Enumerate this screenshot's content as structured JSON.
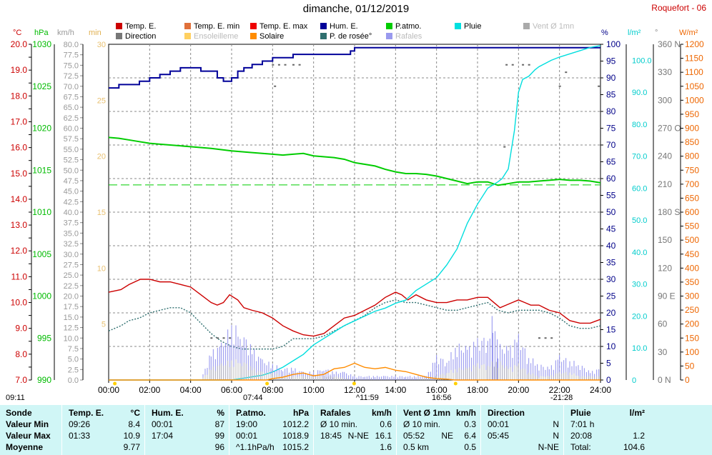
{
  "header": {
    "title": "dimanche, 01/12/2019",
    "station": "Roquefort - 06"
  },
  "legend": [
    {
      "label": "Temp. E.",
      "color": "#cc0000",
      "muted": false
    },
    {
      "label": "Temp. E. min",
      "color": "#e0703a",
      "muted": false
    },
    {
      "label": "Temp. E. max",
      "color": "#ee0000",
      "muted": false
    },
    {
      "label": "Hum. E.",
      "color": "#000099",
      "muted": false
    },
    {
      "label": "P.atmo.",
      "color": "#00cc00",
      "muted": false
    },
    {
      "label": "Pluie",
      "color": "#00e0e0",
      "muted": false
    },
    {
      "label": "Vent Ø 1mn",
      "color": "#aaaaaa",
      "muted": true
    },
    {
      "label": "Direction",
      "color": "#777777",
      "muted": false
    },
    {
      "label": "Ensoleilleme",
      "color": "#ffd060",
      "muted": true
    },
    {
      "label": "Solaire",
      "color": "#ff8c00",
      "muted": false
    },
    {
      "label": "P. de rosée°",
      "color": "#2f6f6f",
      "muted": false
    },
    {
      "label": "Rafales",
      "color": "#9999ee",
      "muted": true
    }
  ],
  "units": {
    "temp": "°C",
    "press": "hPa",
    "wind": "km/h",
    "sun": "min",
    "hum": "%",
    "rain": "l/m²",
    "dir": "°",
    "solar": "W/m²"
  },
  "footer": {
    "sunrise": "07:44",
    "sunset": "16:56",
    "noon": "^11:59",
    "moonset": "09:11",
    "moonrise": "-21:28"
  },
  "chart_data": {
    "type": "line",
    "x_unit": "time of day",
    "x_ticks": [
      "00:00",
      "02:00",
      "04:00",
      "06:00",
      "08:00",
      "10:00",
      "12:00",
      "14:00",
      "16:00",
      "18:00",
      "20:00",
      "22:00",
      "24:00"
    ],
    "axes": {
      "temp": {
        "min": 7.0,
        "max": 20.0,
        "step": 0.5,
        "labels": [
          "7.0",
          "8.0",
          "9.0",
          "10.0",
          "11.0",
          "12.0",
          "13.0",
          "14.0",
          "15.0",
          "16.0",
          "17.0",
          "18.0",
          "19.0",
          "20.0"
        ]
      },
      "press": {
        "min": 990,
        "max": 1030,
        "labels": [
          "990",
          "995",
          "1000",
          "1005",
          "1010",
          "1015",
          "1020",
          "1025",
          "1030"
        ]
      },
      "wind": {
        "min": 0.0,
        "max": 80.0,
        "step": 2.5
      },
      "sun": {
        "min": 0,
        "max": 30,
        "labels": [
          "5",
          "10",
          "15",
          "20",
          "25",
          "30"
        ]
      },
      "hum": {
        "min": 0,
        "max": 100,
        "step": 5
      },
      "rain": {
        "min": 0.0,
        "max": 105.0,
        "labels": [
          "0",
          "10.0",
          "20.0",
          "30.0",
          "40.0",
          "50.0",
          "60.0",
          "70.0",
          "80.0",
          "90.0",
          "100.0"
        ]
      },
      "dir": {
        "min": 0,
        "max": 360,
        "labels": [
          "0 N",
          "30",
          "60",
          "90 E",
          "120",
          "150",
          "180 S",
          "210",
          "240",
          "270 O",
          "300",
          "330",
          "360 N"
        ]
      },
      "solar": {
        "min": 0,
        "max": 1200,
        "step": 50
      }
    },
    "series": [
      {
        "name": "Temp. E.",
        "axis": "temp",
        "color": "#cc0000",
        "x": [
          0,
          0.6,
          1,
          1.55,
          2,
          2.5,
          3,
          3.5,
          4,
          4.5,
          5,
          5.3,
          5.6,
          5.9,
          6.3,
          6.6,
          7,
          7.5,
          8,
          8.5,
          9,
          9.5,
          10,
          10.5,
          11,
          11.5,
          12,
          12.5,
          13,
          13.5,
          14,
          14.3,
          14.6,
          15,
          15.5,
          16,
          16.5,
          17,
          17.5,
          18,
          18.5,
          18.8,
          19.1,
          19.4,
          19.7,
          20,
          20.3,
          20.6,
          21,
          21.5,
          22,
          22.5,
          23,
          23.5,
          24
        ],
        "y": [
          10.4,
          10.5,
          10.7,
          10.9,
          10.9,
          10.8,
          10.8,
          10.7,
          10.6,
          10.3,
          10.0,
          9.9,
          10.0,
          10.3,
          10.1,
          9.8,
          9.7,
          9.6,
          9.4,
          9.1,
          8.9,
          8.75,
          8.7,
          8.8,
          9.1,
          9.4,
          9.5,
          9.7,
          9.9,
          10.2,
          10.4,
          10.3,
          10.1,
          10.3,
          10.1,
          10.0,
          10.0,
          10.1,
          10.1,
          10.2,
          10.2,
          10.0,
          9.8,
          9.9,
          10.0,
          10.1,
          10.0,
          9.9,
          9.9,
          9.7,
          9.6,
          9.3,
          9.2,
          9.2,
          9.35
        ]
      },
      {
        "name": "P. de rosée°",
        "axis": "temp",
        "color": "#2f6f6f",
        "dashed": true,
        "x": [
          0,
          0.6,
          1,
          1.5,
          2,
          2.5,
          3,
          3.5,
          4,
          4.5,
          5,
          5.5,
          6,
          6.5,
          7,
          7.5,
          8,
          8.5,
          9,
          9.5,
          10,
          10.5,
          11,
          11.5,
          12,
          12.5,
          13,
          13.5,
          14,
          14.5,
          15,
          15.5,
          16,
          16.5,
          17,
          17.5,
          18,
          18.5,
          19,
          19.5,
          20,
          20.5,
          21,
          21.5,
          22,
          22.5,
          23,
          23.5,
          24
        ],
        "y": [
          8.9,
          9.1,
          9.3,
          9.4,
          9.6,
          9.7,
          9.8,
          9.8,
          9.6,
          9.2,
          8.8,
          8.5,
          8.3,
          8.2,
          8.2,
          8.2,
          8.2,
          8.3,
          8.6,
          8.6,
          8.6,
          8.7,
          8.9,
          9.1,
          9.3,
          9.5,
          9.8,
          10.0,
          10.1,
          10.0,
          10.0,
          9.9,
          9.8,
          9.7,
          9.7,
          9.8,
          9.9,
          10.0,
          9.7,
          9.6,
          9.7,
          9.7,
          9.7,
          9.6,
          9.4,
          9.1,
          9.0,
          9.0,
          9.1
        ]
      },
      {
        "name": "P.atmo.",
        "axis": "press",
        "color": "#00cc00",
        "x": [
          0,
          0.5,
          1,
          1.5,
          2,
          2.5,
          3,
          3.5,
          4,
          5,
          6,
          7,
          8,
          8.5,
          9,
          9.5,
          10,
          11,
          11.5,
          12,
          12.5,
          13,
          13.5,
          14,
          14.5,
          15,
          15.5,
          16,
          16.5,
          17,
          17.5,
          18,
          18.5,
          19,
          19.5,
          20,
          20.5,
          21,
          21.5,
          22,
          22.5,
          23,
          23.5,
          24
        ],
        "y": [
          1018.9,
          1018.8,
          1018.6,
          1018.4,
          1018.2,
          1018.1,
          1018.0,
          1017.9,
          1017.8,
          1017.6,
          1017.3,
          1017.1,
          1016.9,
          1016.8,
          1016.9,
          1017.0,
          1016.7,
          1016.5,
          1016.3,
          1015.9,
          1015.7,
          1015.5,
          1015.1,
          1014.8,
          1014.6,
          1014.6,
          1014.5,
          1014.3,
          1014.0,
          1013.7,
          1013.4,
          1013.6,
          1013.6,
          1013.2,
          1013.4,
          1013.6,
          1013.6,
          1013.7,
          1013.8,
          1013.9,
          1013.8,
          1013.8,
          1013.7,
          1013.5
        ]
      },
      {
        "name": "Hum. E.",
        "axis": "hum",
        "color": "#000099",
        "step": true,
        "x": [
          0,
          0.5,
          1,
          1.5,
          2,
          2.5,
          3,
          3.5,
          4,
          4.5,
          5,
          5.3,
          5.6,
          6,
          6.3,
          6.6,
          7,
          7.5,
          8,
          8.5,
          9,
          9.5,
          10,
          10.5,
          11,
          11.5,
          11.8,
          12,
          12.5,
          13,
          13.5,
          14,
          15,
          16,
          16.5,
          17,
          17.5,
          18,
          18.5,
          19,
          19.3,
          19.6,
          20,
          20.5,
          21,
          22,
          23,
          24
        ],
        "y": [
          87,
          88,
          88,
          89,
          90,
          91,
          92,
          93,
          93,
          92,
          92,
          90,
          89,
          90,
          92,
          93,
          94,
          95,
          96,
          96,
          97,
          97,
          97,
          97,
          97,
          97,
          98,
          99,
          99,
          99,
          99,
          99,
          99,
          99,
          99,
          99,
          99,
          99,
          99,
          99,
          99,
          99,
          99,
          99,
          99,
          99,
          99,
          99
        ]
      },
      {
        "name": "Pluie",
        "axis": "rain",
        "color": "#00dede",
        "x": [
          0,
          6,
          6.5,
          7,
          7.5,
          8,
          8.5,
          9,
          9.5,
          10,
          10.5,
          11,
          11.5,
          12,
          12.5,
          13,
          13.5,
          14,
          14.5,
          15,
          15.5,
          16,
          16.5,
          17,
          17.5,
          18,
          18.5,
          19,
          19.2,
          19.5,
          19.8,
          20,
          20.2,
          20.5,
          20.8,
          21,
          21.3,
          21.6,
          22,
          22.5,
          23,
          23.5,
          24
        ],
        "y": [
          0,
          0,
          0.5,
          1,
          1.5,
          2.5,
          4,
          6,
          8,
          11,
          13,
          15,
          17,
          18.5,
          20,
          21.5,
          22.5,
          24,
          25,
          28,
          30,
          32,
          36,
          41,
          49,
          55,
          60,
          62,
          63,
          66,
          78,
          90,
          94,
          95,
          97,
          98,
          99,
          100,
          101,
          102,
          103,
          104,
          104.6
        ]
      },
      {
        "name": "Rafales",
        "axis": "wind",
        "color": "#9090ee",
        "x": [
          0,
          4.5,
          5,
          5.5,
          6,
          6.5,
          7,
          7.5,
          8,
          8.5,
          9,
          9.5,
          10,
          10.5,
          11,
          11.5,
          12,
          12.5,
          13,
          13.5,
          14,
          14.5,
          15,
          15.5,
          16,
          16.5,
          17,
          17.5,
          18,
          18.5,
          18.75,
          19,
          19.5,
          20,
          20.5,
          21,
          21.5,
          22,
          22.5,
          23,
          23.5,
          24
        ],
        "y": [
          0,
          0,
          7,
          9,
          14,
          12,
          8,
          5,
          4,
          3,
          3,
          2,
          2,
          3,
          2,
          2,
          1,
          1,
          1,
          1,
          1,
          1,
          1,
          1,
          6,
          5,
          9,
          8,
          10,
          11,
          16.1,
          9,
          8,
          11,
          6,
          4,
          3,
          6,
          5,
          4,
          2,
          3
        ]
      },
      {
        "name": "Vent Ø 1mn",
        "axis": "wind",
        "color": "#bbbbbb",
        "x": [
          0,
          4.5,
          5,
          5.5,
          6,
          6.5,
          7,
          7.5,
          8,
          8.5,
          9,
          9.5,
          10,
          11,
          12,
          13,
          14,
          15,
          16,
          16.5,
          17,
          17.5,
          18,
          18.5,
          19,
          19.5,
          20,
          20.5,
          21,
          21.5,
          22,
          22.5,
          23,
          23.5,
          24
        ],
        "y": [
          0,
          0,
          3,
          4,
          5,
          5,
          3,
          2,
          2,
          1,
          1,
          1,
          1,
          1,
          0,
          0,
          0,
          0,
          1,
          2,
          3,
          3,
          4,
          4,
          5,
          3,
          4,
          2,
          1,
          1,
          2,
          2,
          1,
          1,
          1
        ]
      },
      {
        "name": "Solaire",
        "axis": "solar",
        "color": "#ff8c00",
        "x": [
          0,
          7.7,
          8,
          8.5,
          9,
          9.5,
          10,
          10.5,
          11,
          11.5,
          12,
          12.5,
          13,
          13.5,
          14,
          14.5,
          15,
          15.5,
          16,
          16.5,
          16.9,
          24
        ],
        "y": [
          0,
          0,
          5,
          10,
          20,
          25,
          15,
          20,
          40,
          45,
          60,
          45,
          40,
          45,
          35,
          30,
          20,
          10,
          5,
          3,
          0,
          0
        ]
      },
      {
        "name": "Direction",
        "axis": "dir",
        "color": "#666666",
        "points": true,
        "x": [
          5,
          5.3,
          5.6,
          5.9,
          8.0,
          8.3,
          8.6,
          9.0,
          9.3,
          19.4,
          19.7,
          20.2,
          20.5,
          21,
          21.3,
          21.6,
          8.1,
          22,
          22.3,
          23.9,
          19.3
        ],
        "y": [
          45,
          45,
          45,
          45,
          338,
          338,
          338,
          338,
          338,
          338,
          338,
          338,
          338,
          45,
          45,
          45,
          315,
          315,
          330,
          315,
          250
        ]
      }
    ],
    "reference_line": {
      "axis": "press",
      "value": 1013.25,
      "color": "#00cc00"
    }
  },
  "summary": {
    "cols": [
      {
        "key": "sonde",
        "head": "Sonde",
        "unit": "",
        "rows": [
          [
            "Valeur Min",
            "",
            ""
          ],
          [
            "Valeur Max",
            "",
            ""
          ],
          [
            "Moyenne",
            "",
            ""
          ]
        ]
      },
      {
        "key": "temp",
        "head": "Temp. E.",
        "unit": "°C",
        "rows": [
          [
            "09:26",
            "",
            "8.4"
          ],
          [
            "01:33",
            "",
            "10.9"
          ],
          [
            "",
            "",
            "9.77"
          ]
        ]
      },
      {
        "key": "hum",
        "head": "Hum. E.",
        "unit": "%",
        "rows": [
          [
            "00:01",
            "",
            "87"
          ],
          [
            "17:04",
            "",
            "99"
          ],
          [
            "",
            "",
            "96"
          ]
        ]
      },
      {
        "key": "patmo",
        "head": "P.atmo.",
        "unit": "hPa",
        "rows": [
          [
            "19:00",
            "",
            "1012.2"
          ],
          [
            "00:01",
            "",
            "1018.9"
          ],
          [
            "^1.1hPa/h",
            "",
            "1015.2"
          ]
        ]
      },
      {
        "key": "raf",
        "head": "Rafales",
        "unit": "km/h",
        "rows": [
          [
            "Ø 10 min.",
            "",
            "0.6"
          ],
          [
            "18:45",
            "N-NE",
            "16.1"
          ],
          [
            "",
            "",
            "1.6"
          ]
        ]
      },
      {
        "key": "vent",
        "head": "Vent Ø 1mn",
        "unit": "km/h",
        "rows": [
          [
            "Ø 10 min.",
            "",
            "0.3"
          ],
          [
            "05:52",
            "NE",
            "6.4"
          ],
          [
            "0.5 km",
            "",
            "0.5"
          ]
        ]
      },
      {
        "key": "dir",
        "head": "Direction",
        "unit": "",
        "rows": [
          [
            "00:01",
            "",
            "N"
          ],
          [
            "05:45",
            "",
            "N"
          ],
          [
            "",
            "",
            "N-NE"
          ]
        ]
      },
      {
        "key": "pluie",
        "head": "Pluie",
        "unit": "l/m²",
        "rows": [
          [
            "7:01 h",
            "",
            ""
          ],
          [
            "20:08",
            "",
            "1.2"
          ],
          [
            "Total:",
            "",
            "104.6"
          ]
        ]
      }
    ]
  }
}
